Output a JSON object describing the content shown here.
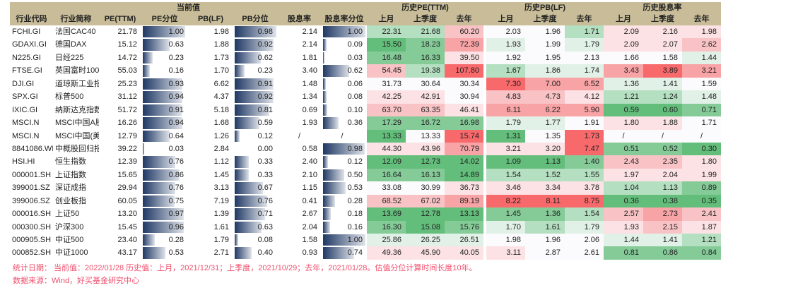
{
  "header": {
    "groups": {
      "current": "当前值",
      "pe_hist": "历史PE(TTM)",
      "pb_hist": "历史PB(LF)",
      "dy_hist": "历史股息率"
    },
    "cols": [
      "行业代码",
      "行业简称",
      "PE(TTM)",
      "PE分位",
      "PB(LF)",
      "PB分位",
      "股息率",
      "股息率分位",
      "上月",
      "上季度",
      "去年",
      "上月",
      "上季度",
      "去年",
      "上月",
      "上季度",
      "去年"
    ]
  },
  "colors": {
    "bar_start": "#1f3864",
    "bar_end": "#dfe3ea",
    "header_bg": "#c8bd98",
    "note": "#f0506e",
    "scale": {
      "G3": "#63be7b",
      "G2": "#85cb98",
      "G1": "#b4dfc0",
      "G0": "#e2f1e7",
      "W": "#fbfbfd",
      "R0": "#fce2e4",
      "R1": "#f9c3c6",
      "R2": "#f8a3a6",
      "R3": "#f8696b"
    }
  },
  "rows": [
    {
      "code": "FCHI.GI",
      "name": "法国CAC40",
      "pe": "21.78",
      "pe_pct": "1.00",
      "pb": "1.98",
      "pb_pct": "0.98",
      "dy": "2.14",
      "dy_pct": "1.00",
      "pe_h": [
        "22.31",
        "21.68",
        "60.20"
      ],
      "pb_h": [
        "2.03",
        "1.96",
        "1.71"
      ],
      "dy_h": [
        "2.09",
        "2.16",
        "1.98"
      ],
      "pe_c": [
        "G1",
        "G1",
        "R1"
      ],
      "pb_c": [
        "W",
        "W",
        "G1"
      ],
      "dy_c": [
        "R0",
        "R0",
        "R0"
      ]
    },
    {
      "code": "GDAXI.GI",
      "name": "德国DAX",
      "pe": "15.12",
      "pe_pct": "0.63",
      "pb": "1.88",
      "pb_pct": "0.92",
      "dy": "2.14",
      "dy_pct": "0.09",
      "pe_h": [
        "15.50",
        "18.23",
        "72.39"
      ],
      "pb_h": [
        "1.93",
        "1.99",
        "1.79"
      ],
      "dy_h": [
        "2.09",
        "2.07",
        "2.62"
      ],
      "pe_c": [
        "G3",
        "G2",
        "R2"
      ],
      "pb_c": [
        "G0",
        "W",
        "G0"
      ],
      "dy_c": [
        "R0",
        "R0",
        "R1"
      ]
    },
    {
      "code": "N225.GI",
      "name": "日经225",
      "pe": "14.72",
      "pe_pct": "0.23",
      "pb": "1.73",
      "pb_pct": "0.62",
      "dy": "1.81",
      "dy_pct": "0.03",
      "pe_h": [
        "16.48",
        "16.33",
        "39.50"
      ],
      "pb_h": [
        "1.92",
        "1.95",
        "2.13"
      ],
      "dy_h": [
        "1.66",
        "1.58",
        "1.44"
      ],
      "pe_c": [
        "G2",
        "G2",
        "R0"
      ],
      "pb_c": [
        "W",
        "W",
        "W"
      ],
      "dy_c": [
        "W",
        "W",
        "G0"
      ]
    },
    {
      "code": "FTSE.GI",
      "name": "英国富时100",
      "pe": "55.03",
      "pe_pct": "0.16",
      "pb": "1.70",
      "pb_pct": "0.23",
      "dy": "3.40",
      "dy_pct": "0.62",
      "pe_h": [
        "54.45",
        "19.38",
        "107.80"
      ],
      "pb_h": [
        "1.67",
        "1.86",
        "1.74"
      ],
      "dy_h": [
        "3.43",
        "3.89",
        "3.21"
      ],
      "pe_c": [
        "R1",
        "G1",
        "R3"
      ],
      "pb_c": [
        "G1",
        "G0",
        "G0"
      ],
      "dy_c": [
        "R2",
        "R3",
        "R2"
      ]
    },
    {
      "code": "DJI.GI",
      "name": "道琼斯工业指",
      "pe": "25.23",
      "pe_pct": "0.93",
      "pb": "6.62",
      "pb_pct": "0.91",
      "dy": "1.48",
      "dy_pct": "0.06",
      "pe_h": [
        "31.73",
        "30.64",
        "30.34"
      ],
      "pb_h": [
        "7.30",
        "7.00",
        "6.52"
      ],
      "dy_h": [
        "1.36",
        "1.41",
        "1.59"
      ],
      "pe_c": [
        "W",
        "W",
        "W"
      ],
      "pb_c": [
        "R3",
        "R2",
        "R2"
      ],
      "dy_c": [
        "G0",
        "G0",
        "W"
      ]
    },
    {
      "code": "SPX.GI",
      "name": "标普500",
      "pe": "31.12",
      "pe_pct": "0.94",
      "pb": "4.37",
      "pb_pct": "0.92",
      "dy": "1.34",
      "dy_pct": "0.08",
      "pe_h": [
        "42.25",
        "42.91",
        "30.94"
      ],
      "pb_h": [
        "4.83",
        "4.73",
        "4.12"
      ],
      "dy_h": [
        "1.21",
        "1.24",
        "1.48"
      ],
      "pe_c": [
        "R0",
        "R0",
        "W"
      ],
      "pb_c": [
        "R1",
        "R1",
        "R0"
      ],
      "dy_c": [
        "G1",
        "G1",
        "G0"
      ]
    },
    {
      "code": "IXIC.GI",
      "name": "纳斯达克指数",
      "pe": "51.72",
      "pe_pct": "0.91",
      "pb": "5.18",
      "pb_pct": "0.81",
      "dy": "0.69",
      "dy_pct": "0.10",
      "pe_h": [
        "63.70",
        "63.35",
        "46.41"
      ],
      "pb_h": [
        "6.11",
        "6.22",
        "5.90"
      ],
      "dy_h": [
        "0.59",
        "0.60",
        "0.71"
      ],
      "pe_c": [
        "R1",
        "R1",
        "R0"
      ],
      "pb_c": [
        "R2",
        "R2",
        "R2"
      ],
      "dy_c": [
        "G3",
        "G3",
        "G2"
      ]
    },
    {
      "code": "MSCI.N",
      "name": "MSCI中国A股",
      "pe": "16.26",
      "pe_pct": "0.94",
      "pb": "1.68",
      "pb_pct": "0.59",
      "dy": "1.93",
      "dy_pct": "0.36",
      "pe_h": [
        "17.29",
        "16.72",
        "16.98"
      ],
      "pb_h": [
        "1.79",
        "1.77",
        "1.91"
      ],
      "dy_h": [
        "1.80",
        "1.88",
        "1.71"
      ],
      "pe_c": [
        "G2",
        "G2",
        "G2"
      ],
      "pb_c": [
        "G0",
        "G0",
        "W"
      ],
      "dy_c": [
        "R0",
        "R0",
        "W"
      ]
    },
    {
      "code": "MSCI.N",
      "name": "MSCI中国(美",
      "pe": "12.79",
      "pe_pct": "0.64",
      "pb": "1.26",
      "pb_pct": "0.12",
      "dy": "/",
      "dy_pct": "/",
      "pe_h": [
        "13.33",
        "13.33",
        "15.74"
      ],
      "pb_h": [
        "1.31",
        "1.35",
        "1.73"
      ],
      "dy_h": [
        "/",
        "/",
        "/"
      ],
      "pe_c": [
        "G3",
        "W",
        "R3"
      ],
      "pb_c": [
        "G3",
        "W",
        "R3"
      ],
      "dy_c": [
        "W",
        "W",
        "W"
      ]
    },
    {
      "code": "8841086.WI",
      "name": "中概股回归指",
      "pe": "39.22",
      "pe_pct": "0.03",
      "pb": "2.84",
      "pb_pct": "0.00",
      "dy": "0.58",
      "dy_pct": "0.98",
      "pe_h": [
        "44.30",
        "43.96",
        "70.79"
      ],
      "pb_h": [
        "3.21",
        "3.20",
        "7.47"
      ],
      "dy_h": [
        "0.51",
        "0.52",
        "0.30"
      ],
      "pe_c": [
        "R0",
        "R0",
        "R2"
      ],
      "pb_c": [
        "R0",
        "R0",
        "R3"
      ],
      "dy_c": [
        "G2",
        "G2",
        "G3"
      ]
    },
    {
      "code": "HSI.HI",
      "name": "恒生指数",
      "pe": "12.39",
      "pe_pct": "0.76",
      "pb": "1.12",
      "pb_pct": "0.33",
      "dy": "2.40",
      "dy_pct": "0.12",
      "pe_h": [
        "12.09",
        "12.73",
        "14.02"
      ],
      "pb_h": [
        "1.09",
        "1.13",
        "1.40"
      ],
      "dy_h": [
        "2.43",
        "2.35",
        "1.80"
      ],
      "pe_c": [
        "G3",
        "G3",
        "G3"
      ],
      "pb_c": [
        "G3",
        "G3",
        "G2"
      ],
      "dy_c": [
        "R1",
        "R1",
        "R0"
      ]
    },
    {
      "code": "000001.SH",
      "name": "上证指数",
      "pe": "15.65",
      "pe_pct": "0.86",
      "pb": "1.45",
      "pb_pct": "0.33",
      "dy": "2.10",
      "dy_pct": "0.50",
      "pe_h": [
        "16.64",
        "16.13",
        "14.89"
      ],
      "pb_h": [
        "1.54",
        "1.52",
        "1.55"
      ],
      "dy_h": [
        "1.97",
        "2.04",
        "1.99"
      ],
      "pe_c": [
        "G2",
        "G2",
        "G3"
      ],
      "pb_c": [
        "G1",
        "G1",
        "G1"
      ],
      "dy_c": [
        "R0",
        "R0",
        "R0"
      ]
    },
    {
      "code": "399001.SZ",
      "name": "深证成指",
      "pe": "29.94",
      "pe_pct": "0.76",
      "pb": "3.13",
      "pb_pct": "0.67",
      "dy": "1.15",
      "dy_pct": "0.53",
      "pe_h": [
        "33.08",
        "30.99",
        "36.73"
      ],
      "pb_h": [
        "3.46",
        "3.34",
        "3.78"
      ],
      "dy_h": [
        "1.04",
        "1.13",
        "0.89"
      ],
      "pe_c": [
        "W",
        "W",
        "R0"
      ],
      "pb_c": [
        "R0",
        "R0",
        "R0"
      ],
      "dy_c": [
        "G1",
        "G1",
        "G2"
      ]
    },
    {
      "code": "399006.SZ",
      "name": "创业板指",
      "pe": "60.05",
      "pe_pct": "0.75",
      "pb": "7.19",
      "pb_pct": "0.76",
      "dy": "0.41",
      "dy_pct": "0.28",
      "pe_h": [
        "68.52",
        "67.02",
        "89.19"
      ],
      "pb_h": [
        "8.22",
        "8.11",
        "8.75"
      ],
      "dy_h": [
        "0.36",
        "0.38",
        "0.35"
      ],
      "pe_c": [
        "R1",
        "R1",
        "R2"
      ],
      "pb_c": [
        "R3",
        "R3",
        "R3"
      ],
      "dy_c": [
        "G3",
        "G3",
        "G3"
      ]
    },
    {
      "code": "000016.SH",
      "name": "上证50",
      "pe": "13.20",
      "pe_pct": "0.97",
      "pb": "1.39",
      "pb_pct": "0.71",
      "dy": "2.67",
      "dy_pct": "0.18",
      "pe_h": [
        "13.69",
        "12.78",
        "13.13"
      ],
      "pb_h": [
        "1.45",
        "1.36",
        "1.54"
      ],
      "dy_h": [
        "2.57",
        "2.73",
        "2.41"
      ],
      "pe_c": [
        "G3",
        "G3",
        "G3"
      ],
      "pb_c": [
        "G2",
        "G2",
        "G1"
      ],
      "dy_c": [
        "R1",
        "R2",
        "R1"
      ]
    },
    {
      "code": "000300.SH",
      "name": "沪深300",
      "pe": "15.45",
      "pe_pct": "0.96",
      "pb": "1.61",
      "pb_pct": "0.63",
      "dy": "2.04",
      "dy_pct": "0.16",
      "pe_h": [
        "16.30",
        "15.08",
        "15.76"
      ],
      "pb_h": [
        "1.70",
        "1.61",
        "1.79"
      ],
      "dy_h": [
        "1.93",
        "2.15",
        "1.87"
      ],
      "pe_c": [
        "G2",
        "G3",
        "G2"
      ],
      "pb_c": [
        "G0",
        "G1",
        "G0"
      ],
      "dy_c": [
        "R0",
        "R1",
        "R0"
      ]
    },
    {
      "code": "000905.SH",
      "name": "中证500",
      "pe": "23.40",
      "pe_pct": "0.28",
      "pb": "1.79",
      "pb_pct": "0.08",
      "dy": "1.58",
      "dy_pct": "1.00",
      "pe_h": [
        "25.86",
        "26.25",
        "26.51"
      ],
      "pb_h": [
        "1.98",
        "1.96",
        "2.06"
      ],
      "dy_h": [
        "1.44",
        "1.41",
        "1.21"
      ],
      "pe_c": [
        "G0",
        "G0",
        "G0"
      ],
      "pb_c": [
        "W",
        "W",
        "W"
      ],
      "dy_c": [
        "G0",
        "G0",
        "G1"
      ]
    },
    {
      "code": "000852.SH",
      "name": "中证1000",
      "pe": "43.17",
      "pe_pct": "0.53",
      "pb": "2.71",
      "pb_pct": "0.40",
      "dy": "0.93",
      "dy_pct": "0.74",
      "pe_h": [
        "49.36",
        "45.90",
        "40.05"
      ],
      "pb_h": [
        "3.11",
        "2.87",
        "2.61"
      ],
      "dy_h": [
        "0.81",
        "0.86",
        "0.84"
      ],
      "pe_c": [
        "R0",
        "R0",
        "R0"
      ],
      "pb_c": [
        "R0",
        "W",
        "W"
      ],
      "dy_c": [
        "G2",
        "G2",
        "G2"
      ]
    }
  ],
  "footer": {
    "note1": "统计日期： 当前值：2022/01/28    历史值：上月，2021/12/31；上季度，2021/10/29；去年，2021/01/28。估值分位计算时间长度10年。",
    "note2": "数据来源：Wind，好买基金研究中心"
  }
}
